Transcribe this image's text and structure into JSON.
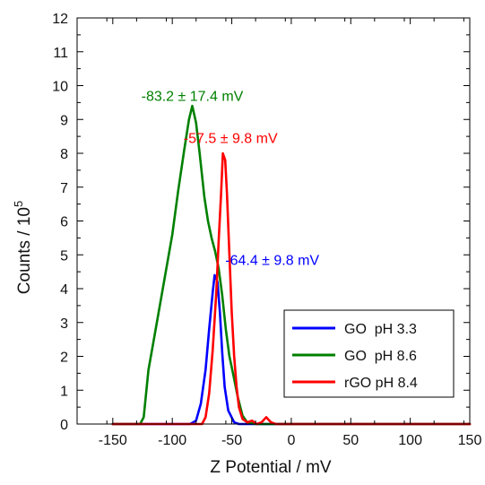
{
  "chart_data": {
    "type": "line",
    "xlabel": "Z Potential / mV",
    "ylabel": "Counts / 10",
    "ylabel_superscript": "5",
    "xlim": [
      -180,
      150
    ],
    "ylim": [
      0,
      12
    ],
    "xticks": [
      -150,
      -100,
      -50,
      0,
      50,
      100,
      150
    ],
    "yticks": [
      0,
      1,
      2,
      3,
      4,
      5,
      6,
      7,
      8,
      9,
      10,
      11,
      12
    ],
    "xtick_labels": [
      "-150",
      "-100",
      "-50",
      "0",
      "50",
      "100",
      "150"
    ],
    "ytick_labels": [
      "0",
      "1",
      "2",
      "3",
      "4",
      "5",
      "6",
      "7",
      "8",
      "9",
      "10",
      "11",
      "12"
    ],
    "grid": false,
    "legend_position": "bottom-right",
    "series": [
      {
        "name": "GO  pH 3.3",
        "color": "#0000ff",
        "points": [
          [
            -150,
            0
          ],
          [
            -85,
            0
          ],
          [
            -80,
            0.1
          ],
          [
            -76,
            0.6
          ],
          [
            -72,
            1.6
          ],
          [
            -69,
            2.8
          ],
          [
            -66,
            3.9
          ],
          [
            -64.4,
            4.4
          ],
          [
            -62,
            4.2
          ],
          [
            -60,
            3.3
          ],
          [
            -58,
            2.1
          ],
          [
            -56,
            1.1
          ],
          [
            -53,
            0.4
          ],
          [
            -48,
            0.05
          ],
          [
            -44,
            0
          ],
          [
            150,
            0
          ]
        ]
      },
      {
        "name": "GO  pH 8.6",
        "color": "#008000",
        "points": [
          [
            -150,
            0
          ],
          [
            -127,
            0
          ],
          [
            -124,
            0.2
          ],
          [
            -120,
            1.6
          ],
          [
            -115,
            2.6
          ],
          [
            -108,
            4.0
          ],
          [
            -100,
            5.6
          ],
          [
            -95,
            6.9
          ],
          [
            -90,
            8.1
          ],
          [
            -86,
            9.0
          ],
          [
            -83.2,
            9.4
          ],
          [
            -80,
            8.9
          ],
          [
            -77,
            8.0
          ],
          [
            -73,
            6.7
          ],
          [
            -70,
            6.0
          ],
          [
            -67,
            5.5
          ],
          [
            -64,
            5.1
          ],
          [
            -61,
            4.6
          ],
          [
            -58,
            3.8
          ],
          [
            -55,
            2.8
          ],
          [
            -52,
            2.0
          ],
          [
            -49,
            1.5
          ],
          [
            -45,
            0.8
          ],
          [
            -41,
            0.25
          ],
          [
            -37,
            0.05
          ],
          [
            -30,
            0
          ],
          [
            150,
            0
          ]
        ]
      },
      {
        "name": "rGO pH 8.4",
        "color": "#ff0000",
        "points": [
          [
            -150,
            0
          ],
          [
            -75,
            0
          ],
          [
            -72,
            0.2
          ],
          [
            -69,
            0.9
          ],
          [
            -66,
            2.2
          ],
          [
            -63,
            3.9
          ],
          [
            -61,
            5.4
          ],
          [
            -59,
            6.8
          ],
          [
            -57.5,
            8.0
          ],
          [
            -55.5,
            7.8
          ],
          [
            -54,
            6.8
          ],
          [
            -52,
            5.0
          ],
          [
            -50,
            3.3
          ],
          [
            -48,
            2.0
          ],
          [
            -46,
            1.1
          ],
          [
            -44,
            0.5
          ],
          [
            -41,
            0.15
          ],
          [
            -37,
            0.05
          ],
          [
            -33,
            0.1
          ],
          [
            -29,
            0
          ],
          [
            -25,
            0.05
          ],
          [
            -21,
            0.2
          ],
          [
            -17,
            0.05
          ],
          [
            -13,
            0
          ],
          [
            150,
            0
          ]
        ]
      }
    ],
    "annotations": [
      {
        "text": "-83.2 ± 17.4 mV",
        "x": -83.2,
        "y": 9.55,
        "color": "#008000"
      },
      {
        "text": "-57.5 ± 9.8 mV",
        "x": -51,
        "y": 8.3,
        "color": "#ff0000"
      },
      {
        "text": "-64.4 ± 9.8 mV",
        "x": -16,
        "y": 4.7,
        "color": "#0000ff"
      }
    ]
  }
}
